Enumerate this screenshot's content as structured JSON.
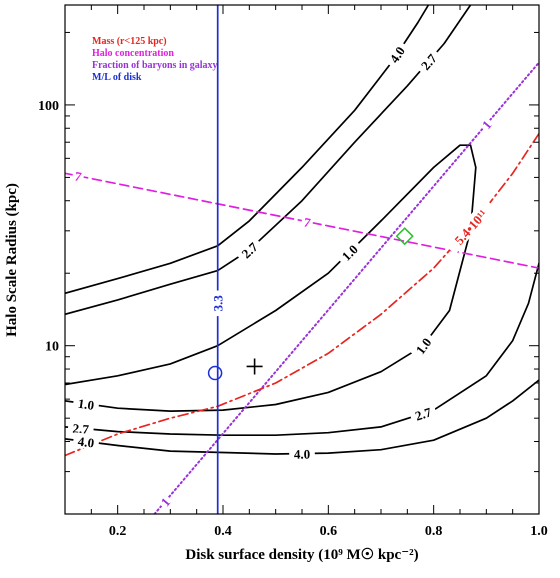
{
  "chart_data": {
    "type": "line",
    "xlabel": "Disk surface density (10⁹ M☉ kpc⁻²)",
    "ylabel": "Halo Scale Radius (kpc)",
    "xlim": [
      0.1,
      1.0
    ],
    "ylim": [
      2.0,
      260
    ],
    "yscale": "log",
    "x_ticks": [
      "0.2",
      "0.4",
      "0.6",
      "0.8",
      "1.0"
    ],
    "y_ticks": [
      "10",
      "100"
    ],
    "legend": {
      "placement": "top-left",
      "entries": [
        {
          "text": "Mass (r<125 kpc)",
          "color": "#e8251f"
        },
        {
          "text": "Halo concentration",
          "color": "#e020e0"
        },
        {
          "text": "Fraction of baryons in galaxy",
          "color": "#9932d8"
        },
        {
          "text": "M/L of disk",
          "color": "#1b2fd6"
        }
      ]
    },
    "series": [
      {
        "label": "4.0",
        "color": "#000000",
        "style": "solid",
        "points": [
          [
            0.1,
            16.5
          ],
          [
            0.2,
            19
          ],
          [
            0.3,
            22
          ],
          [
            0.39,
            26
          ],
          [
            0.45,
            33
          ],
          [
            0.55,
            55
          ],
          [
            0.65,
            95
          ],
          [
            0.72,
            150
          ],
          [
            0.77,
            220
          ],
          [
            0.79,
            260
          ]
        ]
      },
      {
        "label": "2.7",
        "color": "#000000",
        "style": "solid",
        "points": [
          [
            0.1,
            13.5
          ],
          [
            0.2,
            15.5
          ],
          [
            0.3,
            18
          ],
          [
            0.39,
            20.5
          ],
          [
            0.45,
            25
          ],
          [
            0.55,
            40
          ],
          [
            0.65,
            70
          ],
          [
            0.75,
            120
          ],
          [
            0.82,
            180
          ],
          [
            0.87,
            260
          ]
        ]
      },
      {
        "label": "1.0",
        "color": "#000000",
        "style": "solid",
        "points": [
          [
            0.87,
            68
          ],
          [
            0.85,
            68
          ],
          [
            0.8,
            55
          ],
          [
            0.7,
            33
          ],
          [
            0.6,
            20
          ],
          [
            0.5,
            14
          ],
          [
            0.39,
            10
          ],
          [
            0.3,
            8.4
          ],
          [
            0.2,
            7.5
          ],
          [
            0.1,
            6.9
          ]
        ]
      },
      {
        "label": "1.0",
        "color": "#000000",
        "style": "solid",
        "points": [
          [
            0.1,
            5.9
          ],
          [
            0.2,
            5.5
          ],
          [
            0.3,
            5.35
          ],
          [
            0.4,
            5.4
          ],
          [
            0.5,
            5.7
          ],
          [
            0.6,
            6.4
          ],
          [
            0.7,
            7.8
          ],
          [
            0.78,
            10
          ],
          [
            0.83,
            14
          ],
          [
            0.87,
            30
          ],
          [
            0.88,
            55
          ],
          [
            0.87,
            68
          ]
        ]
      },
      {
        "label": "2.7",
        "color": "#000000",
        "style": "solid",
        "points": [
          [
            0.1,
            4.6
          ],
          [
            0.2,
            4.4
          ],
          [
            0.3,
            4.3
          ],
          [
            0.4,
            4.25
          ],
          [
            0.5,
            4.25
          ],
          [
            0.6,
            4.35
          ],
          [
            0.7,
            4.6
          ],
          [
            0.8,
            5.4
          ],
          [
            0.9,
            7.5
          ],
          [
            0.95,
            10.5
          ],
          [
            0.98,
            15
          ],
          [
            1.0,
            22
          ]
        ]
      },
      {
        "label": "4.0",
        "color": "#000000",
        "style": "solid",
        "points": [
          [
            0.1,
            4.1
          ],
          [
            0.2,
            3.85
          ],
          [
            0.3,
            3.65
          ],
          [
            0.4,
            3.6
          ],
          [
            0.5,
            3.55
          ],
          [
            0.6,
            3.58
          ],
          [
            0.7,
            3.7
          ],
          [
            0.8,
            4.05
          ],
          [
            0.9,
            5.0
          ],
          [
            0.95,
            5.9
          ],
          [
            1.0,
            7.2
          ]
        ]
      },
      {
        "label": "7",
        "color": "#e020e0",
        "style": "dashed",
        "points": [
          [
            0.1,
            52
          ],
          [
            1.0,
            21
          ]
        ]
      },
      {
        "label": "1",
        "color": "#9932d8",
        "style": "dotted",
        "points": [
          [
            0.27,
            2.0
          ],
          [
            1.0,
            150
          ]
        ]
      },
      {
        "label": "5.4•10¹¹",
        "color": "#e8251f",
        "style": "dashdot",
        "points": [
          [
            0.1,
            3.5
          ],
          [
            0.2,
            4.3
          ],
          [
            0.3,
            5.0
          ],
          [
            0.39,
            5.6
          ],
          [
            0.5,
            7.0
          ],
          [
            0.6,
            9.3
          ],
          [
            0.7,
            13.5
          ],
          [
            0.8,
            21
          ],
          [
            0.88,
            33
          ],
          [
            0.95,
            52
          ],
          [
            1.0,
            76
          ]
        ]
      },
      {
        "label": "3.3",
        "color": "#1b2fd6",
        "style": "solid",
        "points": [
          [
            0.39,
            2.0
          ],
          [
            0.39,
            260
          ]
        ]
      }
    ],
    "markers": [
      {
        "shape": "diamond",
        "color": "#2bc02b",
        "x": 0.745,
        "y": 28.5
      },
      {
        "shape": "circle",
        "color": "#1b2fd6",
        "x": 0.385,
        "y": 7.7
      },
      {
        "shape": "plus",
        "color": "#000000",
        "x": 0.46,
        "y": 8.2
      }
    ]
  }
}
